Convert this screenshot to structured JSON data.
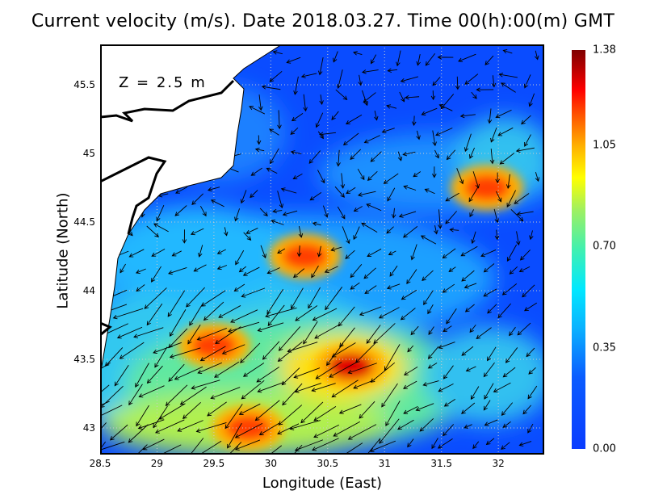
{
  "title": "Current velocity (m/s). Date 2018.03.27. Time 00(h):00(m) GMT",
  "depth_label": "Z = 2.5 m",
  "xlabel": "Longitude (East)",
  "ylabel": "Latitude (North)",
  "x_ticks": [
    "28.5",
    "29",
    "29.5",
    "30",
    "30.5",
    "31",
    "31.5",
    "32"
  ],
  "y_ticks": [
    "45.5",
    "45",
    "44.5",
    "44",
    "43.5",
    "43"
  ],
  "colorbar_ticks": [
    "1.38",
    "1.05",
    "0.70",
    "0.35",
    "0.00"
  ],
  "chart_data": {
    "type": "heatmap",
    "title": "Current velocity (m/s). Date 2018.03.27. Time 00(h):00(m) GMT",
    "xlabel": "Longitude (East)",
    "ylabel": "Latitude (North)",
    "xlim": [
      28.5,
      32.4
    ],
    "ylim": [
      42.8,
      45.8
    ],
    "colorbar_range": [
      0.0,
      1.38
    ],
    "grid": true,
    "overlay": "velocity vectors (arrows)",
    "hotspots": [
      {
        "lon": 30.7,
        "lat": 43.45,
        "speed": 1.3
      },
      {
        "lon": 29.8,
        "lat": 43.0,
        "speed": 1.15
      },
      {
        "lon": 29.5,
        "lat": 43.6,
        "speed": 1.0
      },
      {
        "lon": 30.3,
        "lat": 44.25,
        "speed": 1.0
      },
      {
        "lon": 31.9,
        "lat": 44.75,
        "speed": 1.1
      }
    ]
  }
}
